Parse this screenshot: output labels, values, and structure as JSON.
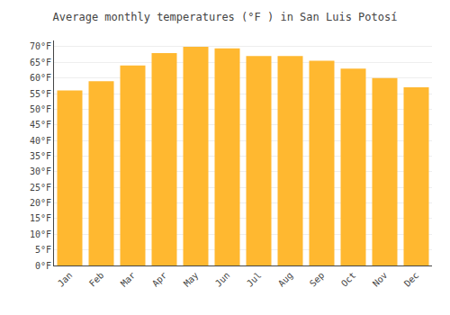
{
  "chart_data": {
    "type": "bar",
    "title": "Average monthly temperatures (°F ) in San Luis Potosí",
    "categories": [
      "Jan",
      "Feb",
      "Mar",
      "Apr",
      "May",
      "Jun",
      "Jul",
      "Aug",
      "Sep",
      "Oct",
      "Nov",
      "Dec"
    ],
    "values": [
      56,
      59,
      64,
      68,
      70,
      69.5,
      67,
      67,
      65.5,
      63,
      60,
      57
    ],
    "color": "#FFB830",
    "ylim": [
      0,
      72
    ],
    "yticks": [
      {
        "value": 0,
        "label": "0°F"
      },
      {
        "value": 5,
        "label": "5°F"
      },
      {
        "value": 10,
        "label": "10°F"
      },
      {
        "value": 15,
        "label": "15°F"
      },
      {
        "value": 20,
        "label": "20°F"
      },
      {
        "value": 25,
        "label": "25°F"
      },
      {
        "value": 30,
        "label": "30°F"
      },
      {
        "value": 35,
        "label": "35°F"
      },
      {
        "value": 40,
        "label": "40°F"
      },
      {
        "value": 45,
        "label": "45°F"
      },
      {
        "value": 50,
        "label": "50°F"
      },
      {
        "value": 55,
        "label": "55°F"
      },
      {
        "value": 60,
        "label": "60°F"
      },
      {
        "value": 65,
        "label": "65°F"
      },
      {
        "value": 70,
        "label": "70°F"
      }
    ],
    "grid": true
  }
}
